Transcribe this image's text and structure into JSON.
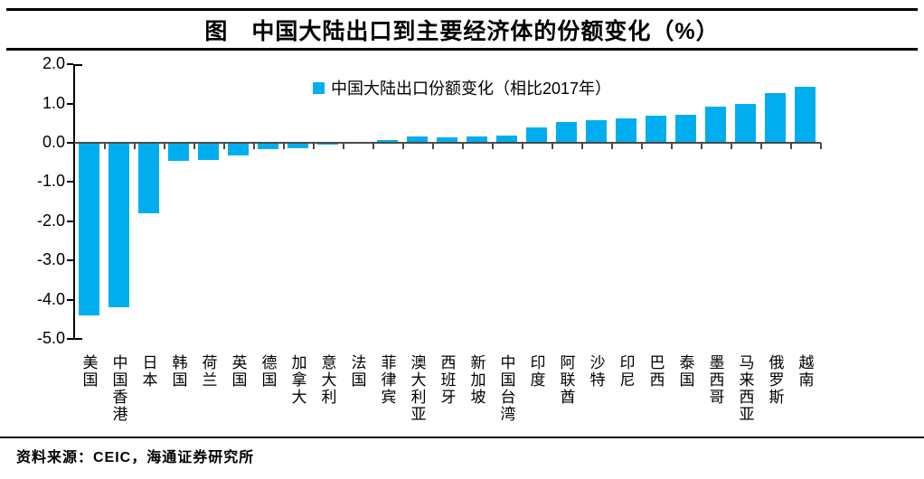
{
  "header": {
    "title": "图　中国大陆出口到主要经济体的份额变化（%）"
  },
  "footer": {
    "source": "资料来源：CEIC，海通证券研究所"
  },
  "colors": {
    "bar": "#00AEEF",
    "zero_line": "#4a4a4a",
    "axis": "#000000"
  },
  "chart_data": {
    "type": "bar",
    "title": "图　中国大陆出口到主要经济体的份额变化（%）",
    "legend": "中国大陆出口份额变化（相比2017年）",
    "legend_position": "top-center",
    "grid": false,
    "baseline": 0,
    "ylim": [
      -5.0,
      2.0
    ],
    "yticks": [
      "2.0",
      "1.0",
      "0.0",
      "-1.0",
      "-2.0",
      "-3.0",
      "-4.0",
      "-5.0"
    ],
    "ytick_values": [
      2.0,
      1.0,
      0.0,
      -1.0,
      -2.0,
      -3.0,
      -4.0,
      -5.0
    ],
    "categories": [
      "美国",
      "中国香港",
      "日本",
      "韩国",
      "荷兰",
      "英国",
      "德国",
      "加拿大",
      "意大利",
      "法国",
      "菲律宾",
      "澳大利亚",
      "西班牙",
      "新加坡",
      "中国台湾",
      "印度",
      "阿联酋",
      "沙特",
      "印尼",
      "巴西",
      "泰国",
      "墨西哥",
      "马来西亚",
      "俄罗斯",
      "越南"
    ],
    "values": [
      -4.4,
      -4.2,
      -1.8,
      -0.45,
      -0.43,
      -0.33,
      -0.16,
      -0.14,
      -0.05,
      0.03,
      0.07,
      0.15,
      0.13,
      0.15,
      0.19,
      0.4,
      0.53,
      0.58,
      0.62,
      0.7,
      0.72,
      0.92,
      1.0,
      1.27,
      1.43
    ]
  }
}
